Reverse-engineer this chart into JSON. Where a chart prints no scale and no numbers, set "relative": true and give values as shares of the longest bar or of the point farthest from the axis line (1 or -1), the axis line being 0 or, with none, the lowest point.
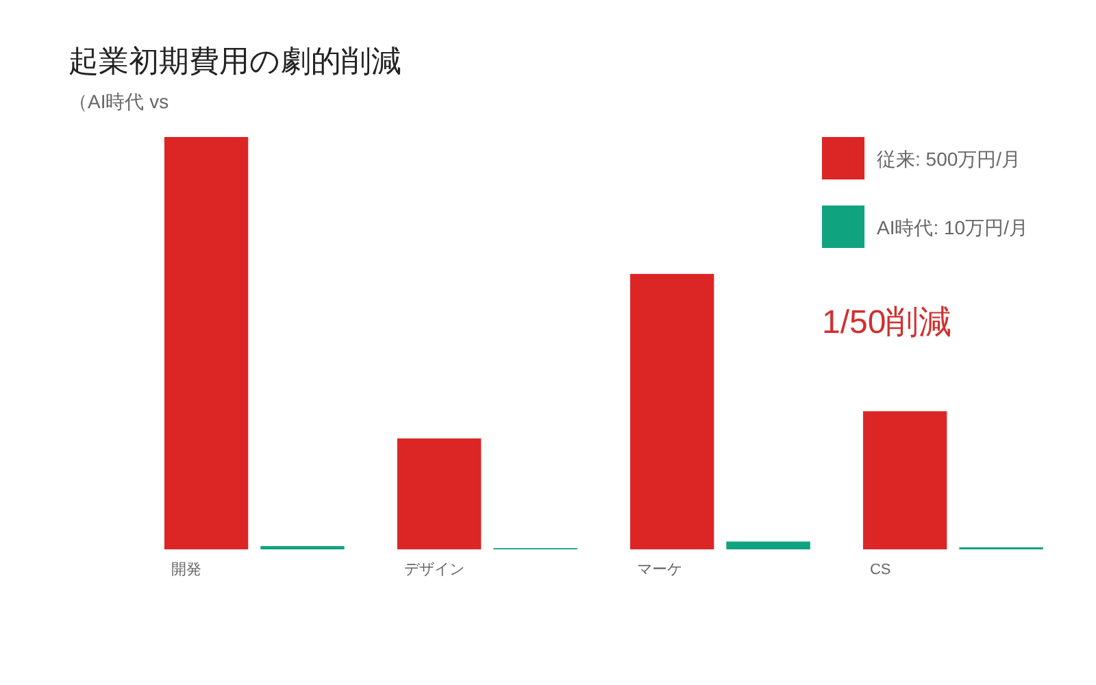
{
  "chart_data": {
    "type": "bar",
    "title": "起業初期費用の劇的削減",
    "subtitle": "（AI時代 vs",
    "categories": [
      "開発",
      "デザイン",
      "マーケ",
      "CS"
    ],
    "relative": true,
    "series": [
      {
        "name": "従来: 500万円/月",
        "color": "#dc2626",
        "values": [
          1,
          0.269,
          0.668,
          0.335
        ]
      },
      {
        "name": "AI時代: 10万円/月",
        "color": "#10a37f",
        "values": [
          0.008,
          0.003,
          0.019,
          0.005
        ]
      }
    ],
    "annotations": [
      "1/50削減"
    ],
    "legend": "top right"
  }
}
